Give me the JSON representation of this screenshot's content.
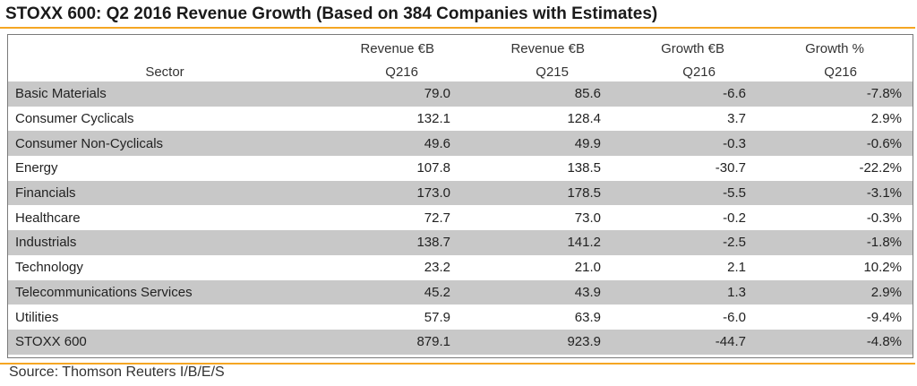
{
  "title": "STOXX 600: Q2 2016 Revenue Growth (Based on 384 Companies with Estimates)",
  "source": "Source: Thomson Reuters I/B/E/S",
  "colors": {
    "accent_rule": "#f5a623",
    "row_shade": "#c8c8c8"
  },
  "headers": {
    "sector": "Sector",
    "rev_q216_top": "Revenue €B",
    "rev_q216_bottom": "Q216",
    "rev_q215_top": "Revenue €B",
    "rev_q215_bottom": "Q215",
    "growth_eur_top": "Growth €B",
    "growth_eur_bottom": "Q216",
    "growth_pct_top": "Growth %",
    "growth_pct_bottom": "Q216"
  },
  "chart_data": {
    "type": "table",
    "title": "STOXX 600: Q2 2016 Revenue Growth (Based on 384 Companies with Estimates)",
    "columns": [
      "Sector",
      "Revenue €B Q216",
      "Revenue €B Q215",
      "Growth €B Q216",
      "Growth % Q216"
    ],
    "rows": [
      {
        "sector": "Basic Materials",
        "rev_q216": "79.0",
        "rev_q215": "85.6",
        "growth_eur": "-6.6",
        "growth_pct": "-7.8%"
      },
      {
        "sector": "Consumer Cyclicals",
        "rev_q216": "132.1",
        "rev_q215": "128.4",
        "growth_eur": "3.7",
        "growth_pct": "2.9%"
      },
      {
        "sector": "Consumer Non-Cyclicals",
        "rev_q216": "49.6",
        "rev_q215": "49.9",
        "growth_eur": "-0.3",
        "growth_pct": "-0.6%"
      },
      {
        "sector": "Energy",
        "rev_q216": "107.8",
        "rev_q215": "138.5",
        "growth_eur": "-30.7",
        "growth_pct": "-22.2%"
      },
      {
        "sector": "Financials",
        "rev_q216": "173.0",
        "rev_q215": "178.5",
        "growth_eur": "-5.5",
        "growth_pct": "-3.1%"
      },
      {
        "sector": "Healthcare",
        "rev_q216": "72.7",
        "rev_q215": "73.0",
        "growth_eur": "-0.2",
        "growth_pct": "-0.3%"
      },
      {
        "sector": "Industrials",
        "rev_q216": "138.7",
        "rev_q215": "141.2",
        "growth_eur": "-2.5",
        "growth_pct": "-1.8%"
      },
      {
        "sector": "Technology",
        "rev_q216": "23.2",
        "rev_q215": "21.0",
        "growth_eur": "2.1",
        "growth_pct": "10.2%"
      },
      {
        "sector": "Telecommunications Services",
        "rev_q216": "45.2",
        "rev_q215": "43.9",
        "growth_eur": "1.3",
        "growth_pct": "2.9%"
      },
      {
        "sector": "Utilities",
        "rev_q216": "57.9",
        "rev_q215": "63.9",
        "growth_eur": "-6.0",
        "growth_pct": "-9.4%"
      }
    ],
    "total": {
      "sector": "STOXX 600",
      "rev_q216": "879.1",
      "rev_q215": "923.9",
      "growth_eur": "-44.7",
      "growth_pct": "-4.8%"
    }
  }
}
